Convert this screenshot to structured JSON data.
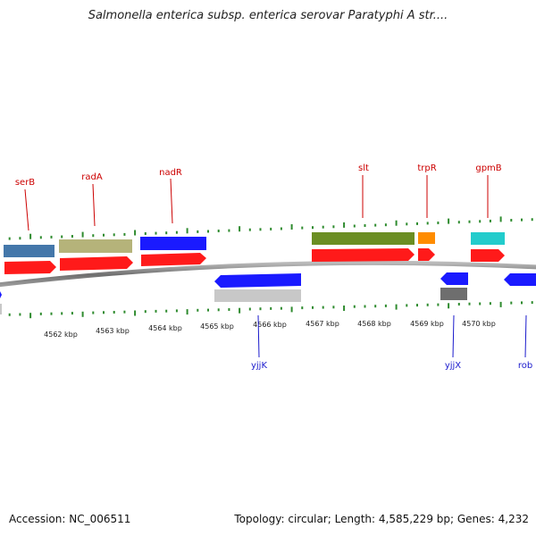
{
  "title": "Salmonella enterica subsp. enterica serovar Paratyphi A str....",
  "footer": {
    "accession": "Accession: NC_006511",
    "summary": "Topology: circular; Length: 4,585,229 bp; Genes: 4,232"
  },
  "colors": {
    "backbone": "#8a8a8a",
    "tick": "#2e8b2e",
    "forward_label": "#cc0000",
    "reverse_label": "#1a1acc",
    "gene_red": "#ff1a1a",
    "gene_blue": "#1a1aff",
    "gene_steel": "#4477aa",
    "gene_khaki": "#b5b37a",
    "gene_olive": "#6b8e23",
    "gene_orange": "#ff8c00",
    "gene_cyan": "#22cccc",
    "gene_grey": "#c8c8c8",
    "gene_darkgrey": "#6e6e6e"
  },
  "kbp_labels": [
    "4562 kbp",
    "4563 kbp",
    "4564 kbp",
    "4565 kbp",
    "4566 kbp",
    "4567 kbp",
    "4568 kbp",
    "4569 kbp",
    "4570 kbp"
  ],
  "forward_labels": [
    "serB",
    "radA",
    "nadR",
    "slt",
    "trpR",
    "gpmB"
  ],
  "reverse_labels": [
    "yjjK",
    "yjjX",
    "rob"
  ]
}
